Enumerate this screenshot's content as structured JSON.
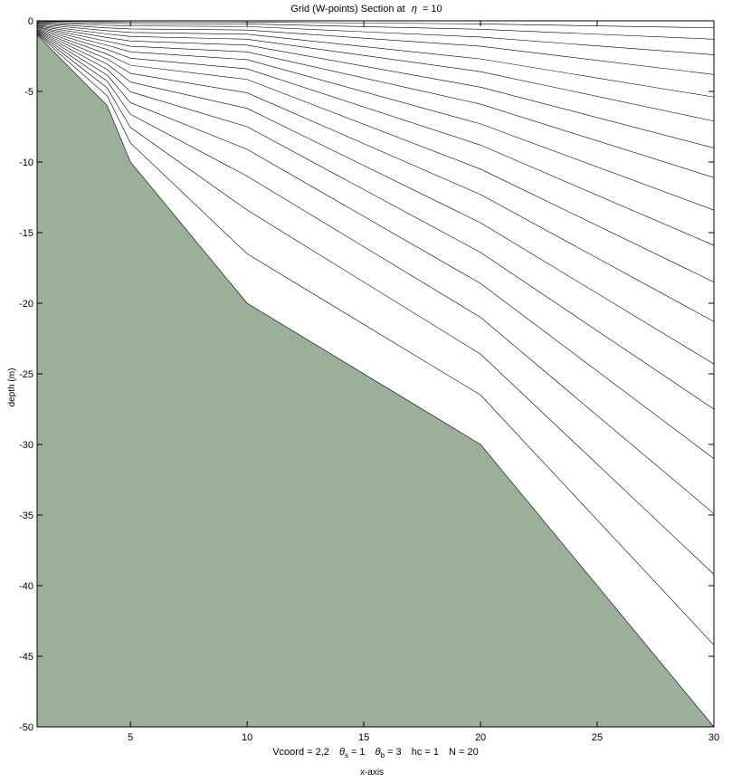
{
  "chart_data": {
    "type": "line",
    "title": "Grid (W-points) Section at",
    "title_symbol": "η",
    "title_value": "= 10",
    "xlabel": "x-axis",
    "ylabel": "depth  (m)",
    "xlim": [
      1,
      30
    ],
    "ylim": [
      -50,
      0
    ],
    "x_ticks": [
      5,
      10,
      15,
      20,
      25,
      30
    ],
    "y_ticks": [
      0,
      -5,
      -10,
      -15,
      -20,
      -25,
      -30,
      -35,
      -40,
      -45,
      -50
    ],
    "grid": false,
    "legend": "none",
    "parameters": {
      "vcoord_label": "Vcoord = 2,2",
      "theta_s_base": "θ",
      "theta_s_sub": "s",
      "theta_s_value": "= 1",
      "theta_b_base": "θ",
      "theta_b_sub": "b",
      "theta_b_value": "= 3",
      "hc_label": "hc  = 1",
      "n_label": "N = 20"
    },
    "bathymetry_x": [
      1,
      4,
      5,
      10,
      20,
      30
    ],
    "bathymetry_depth": [
      -1,
      -6,
      -10,
      -20,
      -30,
      -50
    ],
    "levels": [
      {
        "index": 0,
        "values": [
          -1.0,
          -6.0,
          -10.0,
          -20.0,
          -30.0,
          -50.0
        ]
      },
      {
        "index": 1,
        "values": [
          -0.93,
          -5.31,
          -8.65,
          -16.5,
          -26.5,
          -44.2
        ]
      },
      {
        "index": 2,
        "values": [
          -0.88,
          -4.75,
          -7.55,
          -13.4,
          -23.6,
          -39.2
        ]
      },
      {
        "index": 3,
        "values": [
          -0.83,
          -4.27,
          -6.62,
          -11.0,
          -21.0,
          -34.9
        ]
      },
      {
        "index": 4,
        "values": [
          -0.78,
          -3.84,
          -5.79,
          -9.1,
          -18.6,
          -31.0
        ]
      },
      {
        "index": 5,
        "values": [
          -0.73,
          -3.44,
          -5.03,
          -7.5,
          -16.4,
          -27.5
        ]
      },
      {
        "index": 6,
        "values": [
          -0.68,
          -3.06,
          -4.34,
          -6.2,
          -14.3,
          -24.3
        ]
      },
      {
        "index": 7,
        "values": [
          -0.63,
          -2.7,
          -3.72,
          -5.1,
          -12.3,
          -21.3
        ]
      },
      {
        "index": 8,
        "values": [
          -0.57,
          -2.36,
          -3.15,
          -4.15,
          -10.5,
          -18.5
        ]
      },
      {
        "index": 9,
        "values": [
          -0.52,
          -2.03,
          -2.65,
          -3.4,
          -8.8,
          -15.9
        ]
      },
      {
        "index": 10,
        "values": [
          -0.46,
          -1.73,
          -2.2,
          -2.75,
          -7.3,
          -13.4
        ]
      },
      {
        "index": 11,
        "values": [
          -0.41,
          -1.45,
          -1.8,
          -2.2,
          -5.9,
          -11.1
        ]
      },
      {
        "index": 12,
        "values": [
          -0.35,
          -1.18,
          -1.43,
          -1.72,
          -4.7,
          -9.0
        ]
      },
      {
        "index": 13,
        "values": [
          -0.3,
          -0.93,
          -1.11,
          -1.3,
          -3.6,
          -7.1
        ]
      },
      {
        "index": 14,
        "values": [
          -0.24,
          -0.7,
          -0.82,
          -0.95,
          -2.7,
          -5.4
        ]
      },
      {
        "index": 15,
        "values": [
          -0.19,
          -0.5,
          -0.57,
          -0.65,
          -1.8,
          -3.8
        ]
      },
      {
        "index": 16,
        "values": [
          -0.14,
          -0.32,
          -0.36,
          -0.4,
          -1.15,
          -2.4
        ]
      },
      {
        "index": 17,
        "values": [
          -0.09,
          -0.18,
          -0.2,
          -0.22,
          -0.6,
          -1.3
        ]
      },
      {
        "index": 18,
        "values": [
          -0.04,
          -0.07,
          -0.08,
          -0.09,
          -0.22,
          -0.5
        ]
      },
      {
        "index": 19,
        "values": [
          0,
          0,
          0,
          0,
          0,
          0
        ]
      }
    ],
    "colors": {
      "bathymetry_fill": "#9ab09a",
      "level_line": "#000000",
      "frame": "#000000",
      "background": "#ffffff"
    }
  }
}
